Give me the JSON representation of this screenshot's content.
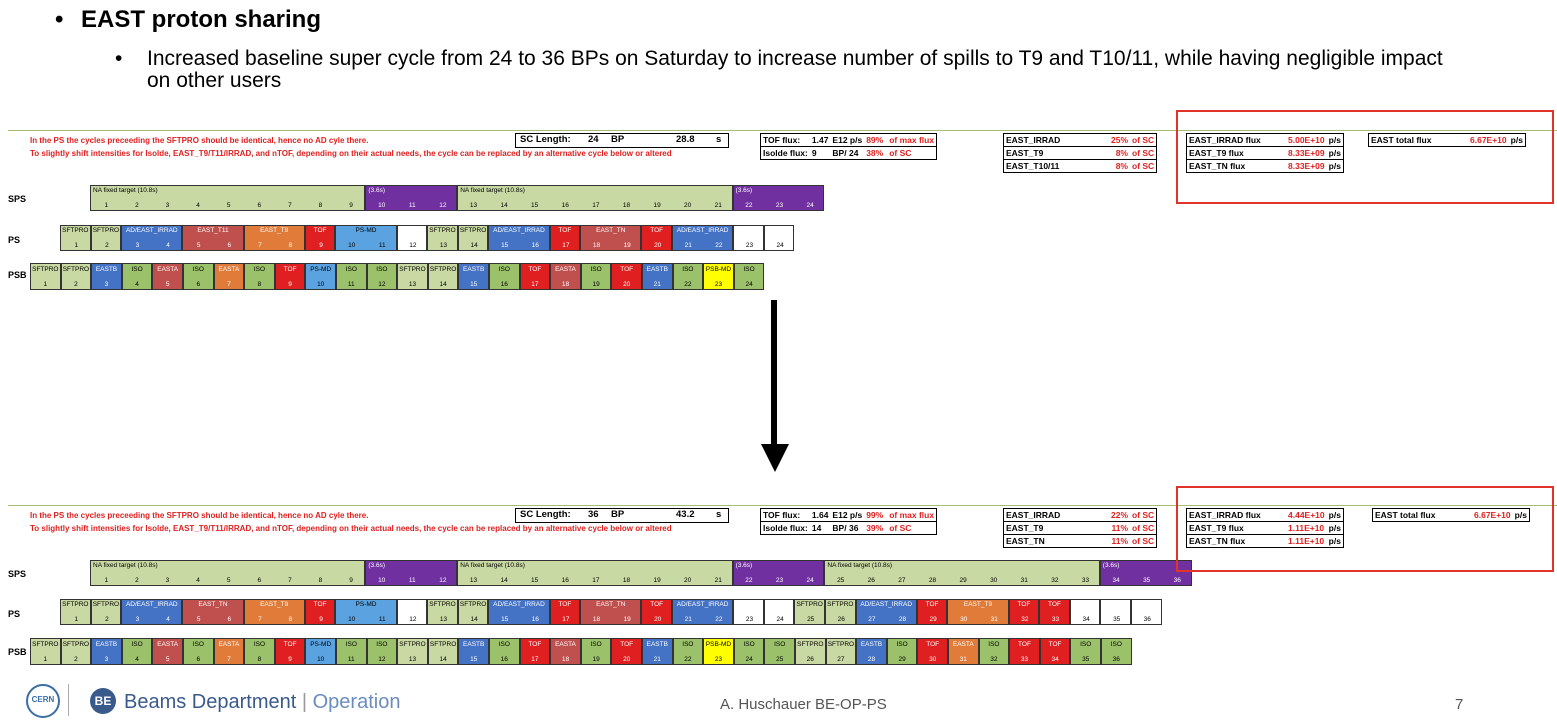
{
  "title": "EAST proton sharing",
  "subbullet": "Increased baseline super cycle from 24 to 36 BPs on Saturday to increase number of spills to T9 and T10/11, while having negligible impact on other users",
  "top": {
    "note1": "In the PS the cycles preceeding the SFTPRO should be identical, hence no AD cyle there.",
    "note2": "To slightly shift intensities for Isolde, EAST_T9/T11/IRRAD, and nTOF, depending on their actual needs, the cycle can be replaced by an alternative cycle below or altered",
    "sc_length_label": "SC Length:",
    "sc_bp": "24",
    "bp": "BP",
    "sc_s": "28.8",
    "s": "s",
    "tof_label": "TOF flux:",
    "tof_val": "1.47",
    "tof_unit": "E12 p/s",
    "tof_pct": "89%",
    "tof_suffix": "of max flux",
    "isolde_label": "Isolde flux:",
    "isolde_val": "9",
    "isolde_unit": "BP/",
    "isolde_of": "24",
    "isolde_pct": "38%",
    "isolde_suffix": "of SC",
    "east_rows": [
      {
        "name": "EAST_IRRAD",
        "pct": "25%",
        "suffix": "of SC"
      },
      {
        "name": "EAST_T9",
        "pct": "8%",
        "suffix": "of SC"
      },
      {
        "name": "EAST_T10/11",
        "pct": "8%",
        "suffix": "of SC"
      }
    ],
    "flux_rows": [
      {
        "name": "EAST_IRRAD flux",
        "val": "5.00E+10",
        "unit": "p/s"
      },
      {
        "name": "EAST_T9 flux",
        "val": "8.33E+09",
        "unit": "p/s"
      },
      {
        "name": "EAST_TN flux",
        "val": "8.33E+09",
        "unit": "p/s"
      }
    ],
    "total_label": "EAST total flux",
    "total_val": "6.67E+10",
    "total_unit": "p/s",
    "sps_label": "SPS",
    "ps_label": "PS",
    "psb_label": "PSB",
    "sps": [
      {
        "label": "NA fixed target (10.8s)",
        "span": 9,
        "color": "#c9d9a3",
        "nums": [
          "1",
          "2",
          "3",
          "4",
          "5",
          "6",
          "7",
          "8",
          "9"
        ]
      },
      {
        "label": "(3.6s)",
        "span": 3,
        "color": "#7030a0",
        "nums": [
          "10",
          "11",
          "12"
        ],
        "light": true
      },
      {
        "label": "NA fixed target (10.8s)",
        "span": 9,
        "color": "#c9d9a3",
        "nums": [
          "13",
          "14",
          "15",
          "16",
          "17",
          "18",
          "19",
          "20",
          "21"
        ]
      },
      {
        "label": "(3.6s)",
        "span": 3,
        "color": "#7030a0",
        "nums": [
          "22",
          "23",
          "24"
        ],
        "light": true
      }
    ],
    "ps": [
      {
        "label": "SFTPRO",
        "span": 1,
        "color": "#c9d9a3",
        "nums": [
          "1"
        ]
      },
      {
        "label": "SFTPRO",
        "span": 1,
        "color": "#c9d9a3",
        "nums": [
          "2"
        ]
      },
      {
        "label": "AD/EAST_IRRAD",
        "span": 2,
        "color": "#4472c4",
        "nums": [
          "3",
          "4"
        ],
        "light": true
      },
      {
        "label": "EAST_T11",
        "span": 2,
        "color": "#c0504d",
        "nums": [
          "5",
          "6"
        ],
        "light": true
      },
      {
        "label": "EAST_T9",
        "span": 2,
        "color": "#e07b39",
        "nums": [
          "7",
          "8"
        ],
        "light": true
      },
      {
        "label": "TOF",
        "span": 1,
        "color": "#e02020",
        "nums": [
          "9"
        ],
        "light": true
      },
      {
        "label": "PS-MD",
        "span": 2,
        "color": "#5ba3e0",
        "nums": [
          "10",
          "11"
        ]
      },
      {
        "label": "",
        "span": 1,
        "color": "#ffffff",
        "nums": [
          "12"
        ]
      },
      {
        "label": "SFTPRO",
        "span": 1,
        "color": "#c9d9a3",
        "nums": [
          "13"
        ]
      },
      {
        "label": "SFTPRO",
        "span": 1,
        "color": "#c9d9a3",
        "nums": [
          "14"
        ]
      },
      {
        "label": "AD/EAST_IRRAD",
        "span": 2,
        "color": "#4472c4",
        "nums": [
          "15",
          "16"
        ],
        "light": true
      },
      {
        "label": "TOF",
        "span": 1,
        "color": "#e02020",
        "nums": [
          "17"
        ],
        "light": true
      },
      {
        "label": "EAST_TN",
        "span": 2,
        "color": "#c0504d",
        "nums": [
          "18",
          "19"
        ],
        "light": true
      },
      {
        "label": "TOF",
        "span": 1,
        "color": "#e02020",
        "nums": [
          "20"
        ],
        "light": true
      },
      {
        "label": "AD/EAST_IRRAD",
        "span": 2,
        "color": "#4472c4",
        "nums": [
          "21",
          "22"
        ],
        "light": true
      },
      {
        "label": "",
        "span": 1,
        "color": "#ffffff",
        "nums": [
          "23"
        ]
      },
      {
        "label": "",
        "span": 1,
        "color": "#ffffff",
        "nums": [
          "24"
        ]
      }
    ],
    "psb": [
      {
        "label": "SFTPRO",
        "color": "#c9d9a3",
        "n": "1"
      },
      {
        "label": "SFTPRO",
        "color": "#c9d9a3",
        "n": "2"
      },
      {
        "label": "EASTB",
        "color": "#4472c4",
        "n": "3",
        "light": true
      },
      {
        "label": "ISO",
        "color": "#9bc26b",
        "n": "4"
      },
      {
        "label": "EASTA",
        "color": "#c0504d",
        "n": "5",
        "light": true
      },
      {
        "label": "ISO",
        "color": "#9bc26b",
        "n": "6"
      },
      {
        "label": "EASTA",
        "color": "#e07b39",
        "n": "7",
        "light": true
      },
      {
        "label": "ISO",
        "color": "#9bc26b",
        "n": "8"
      },
      {
        "label": "TOF",
        "color": "#e02020",
        "n": "9",
        "light": true
      },
      {
        "label": "PS-MD",
        "color": "#5ba3e0",
        "n": "10"
      },
      {
        "label": "ISO",
        "color": "#9bc26b",
        "n": "11"
      },
      {
        "label": "ISO",
        "color": "#9bc26b",
        "n": "12"
      },
      {
        "label": "SFTPRO",
        "color": "#c9d9a3",
        "n": "13"
      },
      {
        "label": "SFTPRO",
        "color": "#c9d9a3",
        "n": "14"
      },
      {
        "label": "EASTB",
        "color": "#4472c4",
        "n": "15",
        "light": true
      },
      {
        "label": "ISO",
        "color": "#9bc26b",
        "n": "16"
      },
      {
        "label": "TOF",
        "color": "#e02020",
        "n": "17",
        "light": true
      },
      {
        "label": "EASTA",
        "color": "#c0504d",
        "n": "18",
        "light": true
      },
      {
        "label": "ISO",
        "color": "#9bc26b",
        "n": "19"
      },
      {
        "label": "TOF",
        "color": "#e02020",
        "n": "20",
        "light": true
      },
      {
        "label": "EASTB",
        "color": "#4472c4",
        "n": "21",
        "light": true
      },
      {
        "label": "ISO",
        "color": "#9bc26b",
        "n": "22"
      },
      {
        "label": "PSB-MD",
        "color": "#ffff00",
        "n": "23"
      },
      {
        "label": "ISO",
        "color": "#9bc26b",
        "n": "24"
      }
    ]
  },
  "bottom": {
    "note1": "In the PS the cycles preceeding the SFTPRO should be identical, hence no AD cyle there.",
    "note2": "To slightly shift intensities for Isolde, EAST_T9/T11/IRRAD, and nTOF, depending on their actual needs, the cycle can be replaced by an alternative cycle below or altered",
    "sc_length_label": "SC Length:",
    "sc_bp": "36",
    "bp": "BP",
    "sc_s": "43.2",
    "s": "s",
    "tof_label": "TOF flux:",
    "tof_val": "1.64",
    "tof_unit": "E12 p/s",
    "tof_pct": "99%",
    "tof_suffix": "of max flux",
    "isolde_label": "Isolde flux:",
    "isolde_val": "14",
    "isolde_unit": "BP/",
    "isolde_of": "36",
    "isolde_pct": "39%",
    "isolde_suffix": "of SC",
    "east_rows": [
      {
        "name": "EAST_IRRAD",
        "pct": "22%",
        "suffix": "of SC"
      },
      {
        "name": "EAST_T9",
        "pct": "11%",
        "suffix": "of SC"
      },
      {
        "name": "EAST_TN",
        "pct": "11%",
        "suffix": "of SC"
      }
    ],
    "flux_rows": [
      {
        "name": "EAST_IRRAD flux",
        "val": "4.44E+10",
        "unit": "p/s"
      },
      {
        "name": "EAST_T9 flux",
        "val": "1.11E+10",
        "unit": "p/s"
      },
      {
        "name": "EAST_TN flux",
        "val": "1.11E+10",
        "unit": "p/s"
      }
    ],
    "total_label": "EAST total flux",
    "total_val": "6.67E+10",
    "total_unit": "p/s",
    "sps_label": "SPS",
    "ps_label": "PS",
    "psb_label": "PSB",
    "sps": [
      {
        "label": "NA fixed target (10.8s)",
        "span": 9,
        "color": "#c9d9a3",
        "nums": [
          "1",
          "2",
          "3",
          "4",
          "5",
          "6",
          "7",
          "8",
          "9"
        ]
      },
      {
        "label": "(3.6s)",
        "span": 3,
        "color": "#7030a0",
        "nums": [
          "10",
          "11",
          "12"
        ],
        "light": true
      },
      {
        "label": "NA fixed target (10.8s)",
        "span": 9,
        "color": "#c9d9a3",
        "nums": [
          "13",
          "14",
          "15",
          "16",
          "17",
          "18",
          "19",
          "20",
          "21"
        ]
      },
      {
        "label": "(3.6s)",
        "span": 3,
        "color": "#7030a0",
        "nums": [
          "22",
          "23",
          "24"
        ],
        "light": true
      },
      {
        "label": "NA fixed target (10.8s)",
        "span": 9,
        "color": "#c9d9a3",
        "nums": [
          "25",
          "26",
          "27",
          "28",
          "29",
          "30",
          "31",
          "32",
          "33"
        ]
      },
      {
        "label": "(3.6s)",
        "span": 3,
        "color": "#7030a0",
        "nums": [
          "34",
          "35",
          "36"
        ],
        "light": true
      }
    ],
    "ps": [
      {
        "label": "SFTPRO",
        "span": 1,
        "color": "#c9d9a3",
        "nums": [
          "1"
        ]
      },
      {
        "label": "SFTPRO",
        "span": 1,
        "color": "#c9d9a3",
        "nums": [
          "2"
        ]
      },
      {
        "label": "AD/EAST_IRRAD",
        "span": 2,
        "color": "#4472c4",
        "nums": [
          "3",
          "4"
        ],
        "light": true
      },
      {
        "label": "EAST_TN",
        "span": 2,
        "color": "#c0504d",
        "nums": [
          "5",
          "6"
        ],
        "light": true
      },
      {
        "label": "EAST_T9",
        "span": 2,
        "color": "#e07b39",
        "nums": [
          "7",
          "8"
        ],
        "light": true
      },
      {
        "label": "TOF",
        "span": 1,
        "color": "#e02020",
        "nums": [
          "9"
        ],
        "light": true
      },
      {
        "label": "PS-MD",
        "span": 2,
        "color": "#5ba3e0",
        "nums": [
          "10",
          "11"
        ]
      },
      {
        "label": "",
        "span": 1,
        "color": "#ffffff",
        "nums": [
          "12"
        ]
      },
      {
        "label": "SFTPRO",
        "span": 1,
        "color": "#c9d9a3",
        "nums": [
          "13"
        ]
      },
      {
        "label": "SFTPRO",
        "span": 1,
        "color": "#c9d9a3",
        "nums": [
          "14"
        ]
      },
      {
        "label": "AD/EAST_IRRAD",
        "span": 2,
        "color": "#4472c4",
        "nums": [
          "15",
          "16"
        ],
        "light": true
      },
      {
        "label": "TOF",
        "span": 1,
        "color": "#e02020",
        "nums": [
          "17"
        ],
        "light": true
      },
      {
        "label": "EAST_TN",
        "span": 2,
        "color": "#c0504d",
        "nums": [
          "18",
          "19"
        ],
        "light": true
      },
      {
        "label": "TOF",
        "span": 1,
        "color": "#e02020",
        "nums": [
          "20"
        ],
        "light": true
      },
      {
        "label": "AD/EAST_IRRAD",
        "span": 2,
        "color": "#4472c4",
        "nums": [
          "21",
          "22"
        ],
        "light": true
      },
      {
        "label": "",
        "span": 1,
        "color": "#ffffff",
        "nums": [
          "23"
        ]
      },
      {
        "label": "",
        "span": 1,
        "color": "#ffffff",
        "nums": [
          "24"
        ]
      },
      {
        "label": "SFTPRO",
        "span": 1,
        "color": "#c9d9a3",
        "nums": [
          "25"
        ]
      },
      {
        "label": "SFTPRO",
        "span": 1,
        "color": "#c9d9a3",
        "nums": [
          "26"
        ]
      },
      {
        "label": "AD/EAST_IRRAD",
        "span": 2,
        "color": "#4472c4",
        "nums": [
          "27",
          "28"
        ],
        "light": true
      },
      {
        "label": "TOF",
        "span": 1,
        "color": "#e02020",
        "nums": [
          "29"
        ],
        "light": true
      },
      {
        "label": "EAST_T9",
        "span": 2,
        "color": "#e07b39",
        "nums": [
          "30",
          "31"
        ],
        "light": true
      },
      {
        "label": "TOF",
        "span": 1,
        "color": "#e02020",
        "nums": [
          "32"
        ],
        "light": true
      },
      {
        "label": "TOF",
        "span": 1,
        "color": "#e02020",
        "nums": [
          "33"
        ],
        "light": true
      },
      {
        "label": "",
        "span": 1,
        "color": "#ffffff",
        "nums": [
          "34"
        ]
      },
      {
        "label": "",
        "span": 1,
        "color": "#ffffff",
        "nums": [
          "35"
        ]
      },
      {
        "label": "",
        "span": 1,
        "color": "#ffffff",
        "nums": [
          "36"
        ]
      }
    ],
    "psb": [
      {
        "label": "SFTPRO",
        "color": "#c9d9a3",
        "n": "1"
      },
      {
        "label": "SFTPRO",
        "color": "#c9d9a3",
        "n": "2"
      },
      {
        "label": "EASTB",
        "color": "#4472c4",
        "n": "3",
        "light": true
      },
      {
        "label": "ISO",
        "color": "#9bc26b",
        "n": "4"
      },
      {
        "label": "EASTA",
        "color": "#c0504d",
        "n": "5",
        "light": true
      },
      {
        "label": "ISO",
        "color": "#9bc26b",
        "n": "6"
      },
      {
        "label": "EASTA",
        "color": "#e07b39",
        "n": "7",
        "light": true
      },
      {
        "label": "ISO",
        "color": "#9bc26b",
        "n": "8"
      },
      {
        "label": "TOF",
        "color": "#e02020",
        "n": "9",
        "light": true
      },
      {
        "label": "PS-MD",
        "color": "#5ba3e0",
        "n": "10"
      },
      {
        "label": "ISO",
        "color": "#9bc26b",
        "n": "11"
      },
      {
        "label": "ISO",
        "color": "#9bc26b",
        "n": "12"
      },
      {
        "label": "SFTPRO",
        "color": "#c9d9a3",
        "n": "13"
      },
      {
        "label": "SFTPRO",
        "color": "#c9d9a3",
        "n": "14"
      },
      {
        "label": "EASTB",
        "color": "#4472c4",
        "n": "15",
        "light": true
      },
      {
        "label": "ISO",
        "color": "#9bc26b",
        "n": "16"
      },
      {
        "label": "TOF",
        "color": "#e02020",
        "n": "17",
        "light": true
      },
      {
        "label": "EASTA",
        "color": "#c0504d",
        "n": "18",
        "light": true
      },
      {
        "label": "ISO",
        "color": "#9bc26b",
        "n": "19"
      },
      {
        "label": "TOF",
        "color": "#e02020",
        "n": "20",
        "light": true
      },
      {
        "label": "EASTB",
        "color": "#4472c4",
        "n": "21",
        "light": true
      },
      {
        "label": "ISO",
        "color": "#9bc26b",
        "n": "22"
      },
      {
        "label": "PSB-MD",
        "color": "#ffff00",
        "n": "23"
      },
      {
        "label": "ISO",
        "color": "#9bc26b",
        "n": "24"
      },
      {
        "label": "ISO",
        "color": "#9bc26b",
        "n": "25"
      },
      {
        "label": "SFTPRO",
        "color": "#c9d9a3",
        "n": "26"
      },
      {
        "label": "SFTPRO",
        "color": "#c9d9a3",
        "n": "27"
      },
      {
        "label": "EASTB",
        "color": "#4472c4",
        "n": "28",
        "light": true
      },
      {
        "label": "ISO",
        "color": "#9bc26b",
        "n": "29"
      },
      {
        "label": "TOF",
        "color": "#e02020",
        "n": "30",
        "light": true
      },
      {
        "label": "EASTA",
        "color": "#e07b39",
        "n": "31",
        "light": true
      },
      {
        "label": "ISO",
        "color": "#9bc26b",
        "n": "32"
      },
      {
        "label": "TOF",
        "color": "#e02020",
        "n": "33",
        "light": true
      },
      {
        "label": "TOF",
        "color": "#e02020",
        "n": "34",
        "light": true
      },
      {
        "label": "ISO",
        "color": "#9bc26b",
        "n": "35"
      },
      {
        "label": "ISO",
        "color": "#9bc26b",
        "n": "36"
      }
    ]
  },
  "footer": {
    "logo_text": "CERN",
    "be_badge": "BE",
    "dept": "Beams Department",
    "sep": "|",
    "section": "Operation",
    "author": "A. Huschauer BE-OP-PS",
    "page": "7"
  }
}
